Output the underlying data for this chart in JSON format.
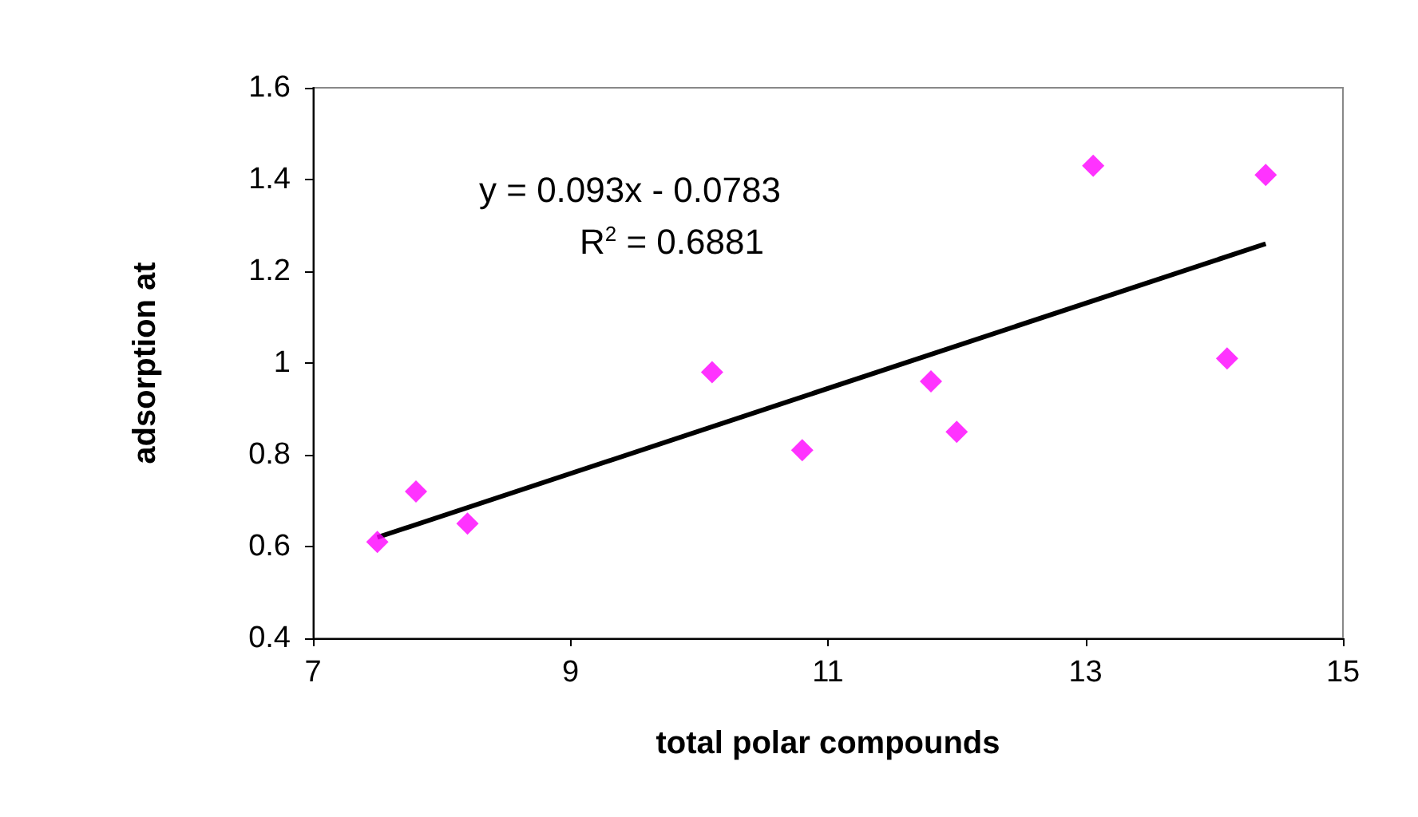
{
  "chart_data": {
    "type": "scatter",
    "xlabel": "total polar compounds",
    "ylabel": "adsorption at",
    "xlim": [
      7,
      15
    ],
    "xticks": [
      7,
      9,
      11,
      13,
      15
    ],
    "ylim": [
      0.4,
      1.6
    ],
    "yticks": [
      0.4,
      0.6,
      0.8,
      1,
      1.2,
      1.4,
      1.6
    ],
    "grid": false,
    "series": [
      {
        "marker": "diamond",
        "color": "#ff00ff",
        "x": [
          7.5,
          7.8,
          8.2,
          10.1,
          10.8,
          11.8,
          12.0,
          13.06,
          14.1,
          14.4
        ],
        "values": [
          0.61,
          0.72,
          0.65,
          0.98,
          0.81,
          0.96,
          0.85,
          1.43,
          1.01,
          1.41
        ]
      },
      {
        "type": "line",
        "marker": "none",
        "line_style": "solid",
        "color": "#000000",
        "x": [
          7.5,
          14.4
        ],
        "values": [
          0.62,
          1.26
        ]
      }
    ],
    "annotations": [
      "y = 0.093x - 0.0783",
      "R$^{2}$ = 0.6881"
    ]
  }
}
